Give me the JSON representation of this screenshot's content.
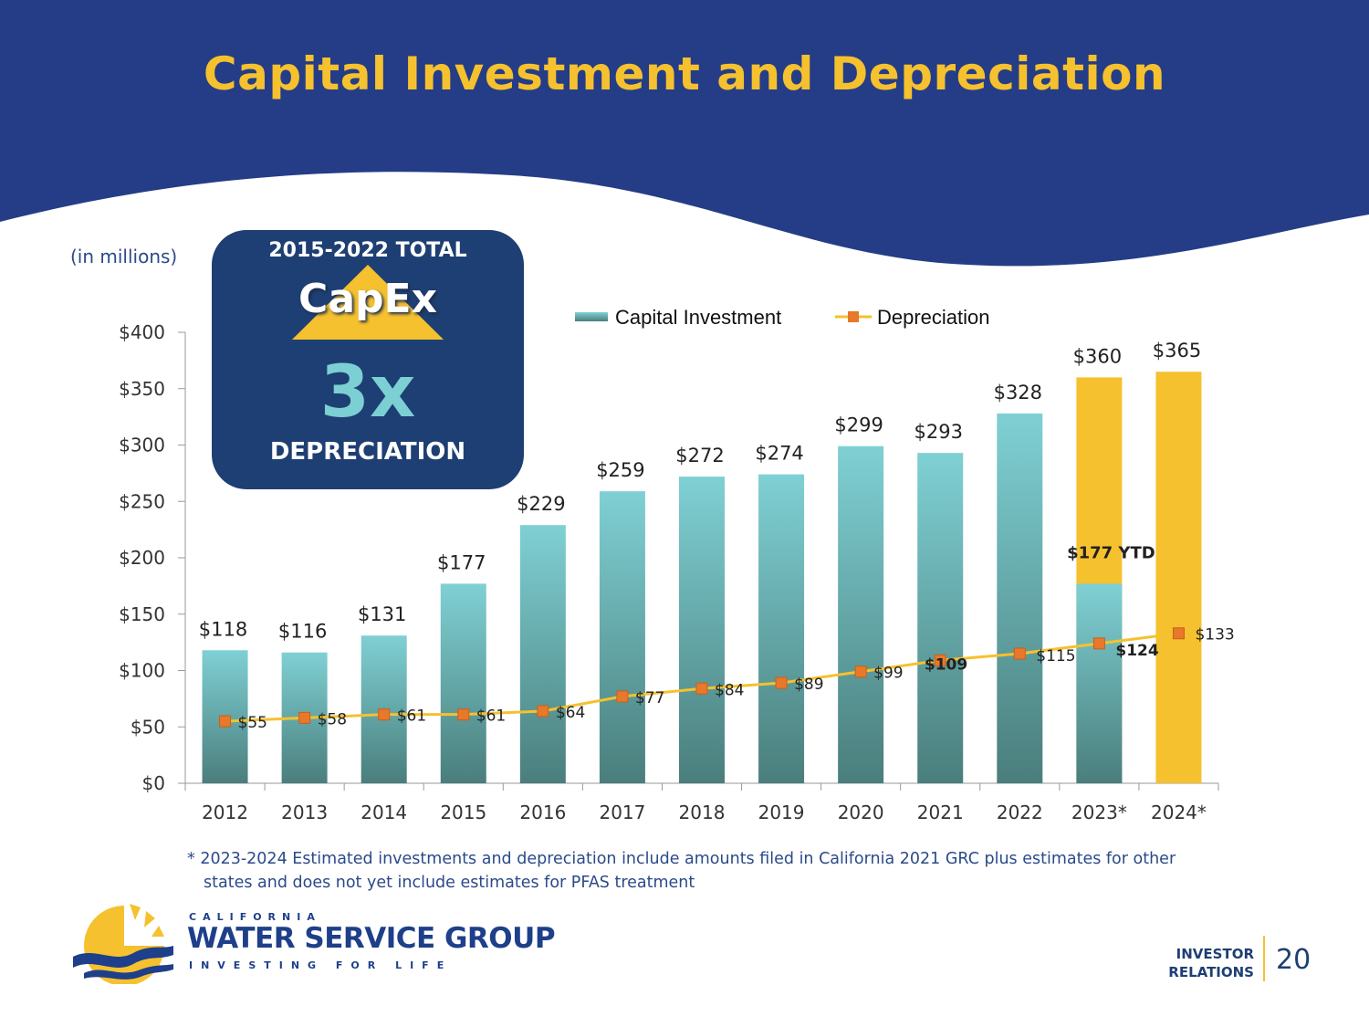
{
  "title": "Capital Investment and Depreciation",
  "units_note": "(in millions)",
  "callout": {
    "heading": "2015-2022 TOTAL",
    "capex": "CapEx",
    "multiplier": "3x",
    "label": "DEPRECIATION"
  },
  "colors": {
    "header_blue": "#253d87",
    "title_gold": "#F6C12E",
    "bar_teal_top": "#7fd0d4",
    "bar_teal_bottom": "#4a7e7c",
    "bar_gold": "#F6C12E",
    "line_gold": "#F6C12E",
    "marker_orange": "#E8782A"
  },
  "chart_data": {
    "type": "bar",
    "categories": [
      "2012",
      "2013",
      "2014",
      "2015",
      "2016",
      "2017",
      "2018",
      "2019",
      "2020",
      "2021",
      "2022",
      "2023*",
      "2024*"
    ],
    "ylim": [
      0,
      400
    ],
    "yticks": [
      0,
      50,
      100,
      150,
      200,
      250,
      300,
      350,
      400
    ],
    "ytick_labels": [
      "$0",
      "$50",
      "$100",
      "$150",
      "$200",
      "$250",
      "$300",
      "$350",
      "$400"
    ],
    "grid": false,
    "legend_position": "top",
    "series": [
      {
        "name": "Capital Investment",
        "type": "bar",
        "values": [
          118,
          116,
          131,
          177,
          229,
          259,
          272,
          274,
          299,
          293,
          328,
          360,
          365
        ],
        "labels": [
          "$118",
          "$116",
          "$131",
          "$177",
          "$229",
          "$259",
          "$272",
          "$274",
          "$299",
          "$293",
          "$328",
          "$360",
          "$365"
        ],
        "ytd_values": [
          null,
          null,
          null,
          null,
          null,
          null,
          null,
          null,
          null,
          null,
          null,
          177,
          null
        ],
        "ytd_label": "$177 YTD"
      },
      {
        "name": "Depreciation",
        "type": "line",
        "values": [
          55,
          58,
          61,
          61,
          64,
          77,
          84,
          89,
          99,
          109,
          115,
          124,
          133
        ],
        "labels": [
          "$55",
          "$58",
          "$61",
          "$61",
          "$64",
          "$77",
          "$84",
          "$89",
          "$99",
          "$109",
          "$115",
          "$124",
          "$133"
        ]
      }
    ]
  },
  "footnote": {
    "line1": "* 2023-2024 Estimated investments and depreciation include amounts filed in California 2021 GRC plus estimates for other",
    "line2": "states and does not yet include estimates for PFAS treatment"
  },
  "brand": {
    "small": "CALIFORNIA",
    "name": "WATER SERVICE GROUP",
    "tagline": "INVESTING FOR LIFE"
  },
  "section": {
    "line1": "INVESTOR",
    "line2": "RELATIONS"
  },
  "page_number": "20"
}
